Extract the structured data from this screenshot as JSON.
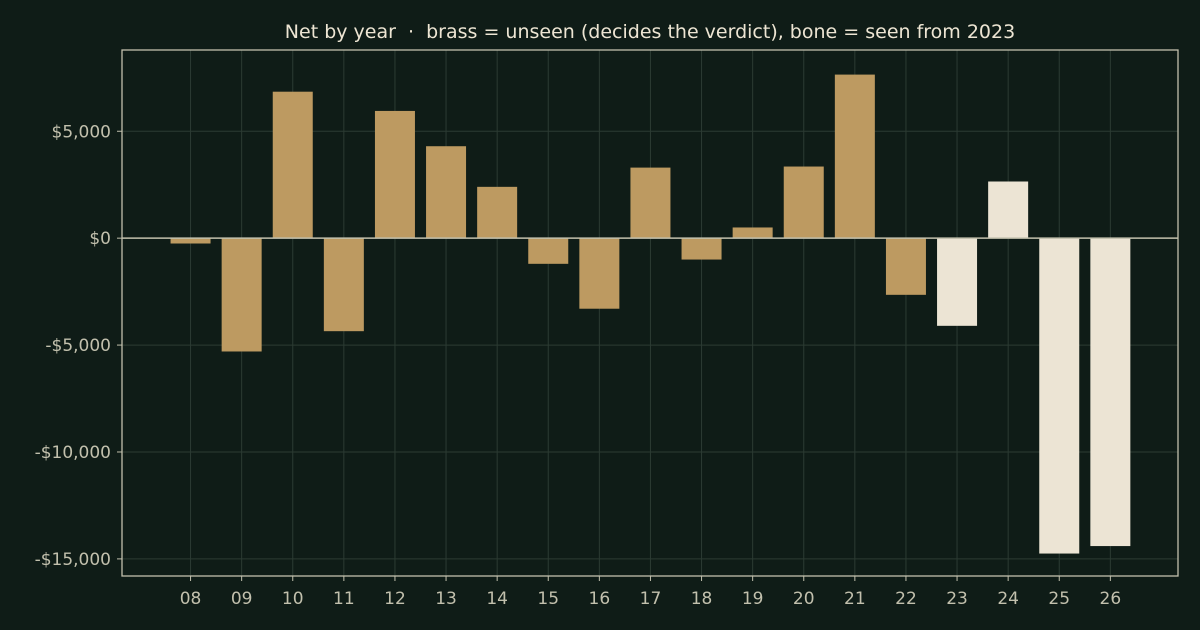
{
  "colors": {
    "background": "#0f1c17",
    "frame": "#c2c0ad",
    "grid": "#2c3b33",
    "zero_line": "#c2c0ad",
    "tick_text": "#c2c0ad",
    "title_text": "#ede5d3",
    "brass": "#bd9a61",
    "bone": "#ece4d4"
  },
  "chart_data": {
    "type": "bar",
    "title": "Net by year  ·  brass = unseen (decides the verdict), bone = seen from 2023",
    "xlabel": "",
    "ylabel": "",
    "ylim": [
      -15800,
      8800
    ],
    "yticks": [
      5000,
      0,
      -5000,
      -10000,
      -15000
    ],
    "ytick_labels": [
      "$5,000",
      "$0",
      "-$5,000",
      "-$10,000",
      "-$15,000"
    ],
    "grid": true,
    "legend": "none",
    "categories": [
      "08",
      "09",
      "10",
      "11",
      "12",
      "13",
      "14",
      "15",
      "16",
      "17",
      "18",
      "19",
      "20",
      "21",
      "22",
      "23",
      "24",
      "25",
      "26"
    ],
    "values": [
      -250,
      -5300,
      6850,
      -4350,
      5950,
      4300,
      2400,
      -1200,
      -3300,
      3300,
      -1000,
      500,
      3350,
      7650,
      -2650,
      -4100,
      2650,
      -14750,
      -14400
    ],
    "groups": [
      "unseen",
      "unseen",
      "unseen",
      "unseen",
      "unseen",
      "unseen",
      "unseen",
      "unseen",
      "unseen",
      "unseen",
      "unseen",
      "unseen",
      "unseen",
      "unseen",
      "unseen",
      "seen",
      "seen",
      "seen",
      "seen"
    ]
  }
}
